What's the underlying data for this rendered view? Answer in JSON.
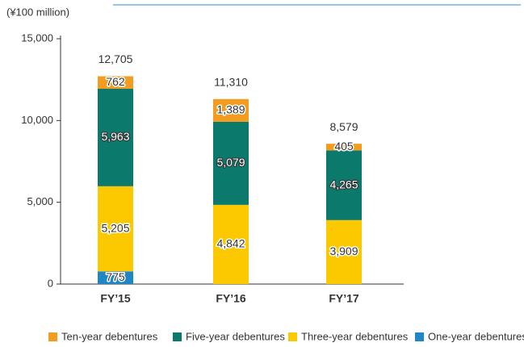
{
  "chart_data": {
    "type": "stacked_bar",
    "unit_label": "(¥100 million)",
    "categories": [
      "FY’15",
      "FY’16",
      "FY’17"
    ],
    "series": [
      {
        "name": "One-year debentures",
        "color": "#1f86c8",
        "values": [
          775,
          null,
          null
        ],
        "value_labels": [
          "775",
          null,
          null
        ]
      },
      {
        "name": "Three-year debentures",
        "color": "#fcc800",
        "values": [
          5205,
          4842,
          3909
        ],
        "value_labels": [
          "5,205",
          "4,842",
          "3,909"
        ]
      },
      {
        "name": "Five-year debentures",
        "color": "#0b7a6c",
        "values": [
          5963,
          5079,
          4265
        ],
        "value_labels": [
          "5,963",
          "5,079",
          "4,265"
        ]
      },
      {
        "name": "Ten-year debentures",
        "color": "#f39c1f",
        "values": [
          762,
          1389,
          405
        ],
        "value_labels": [
          "762",
          "1,389",
          "405"
        ]
      }
    ],
    "totals": [
      12705,
      11310,
      8579
    ],
    "total_labels": [
      "12,705",
      "11,310",
      "8,579"
    ],
    "ylim": [
      0,
      15000
    ],
    "yticks": [
      0,
      {
        "value": 5000,
        "label": "5,000"
      },
      {
        "value": 10000,
        "label": "10,000"
      },
      {
        "value": 15000,
        "label": "15,000"
      }
    ]
  }
}
